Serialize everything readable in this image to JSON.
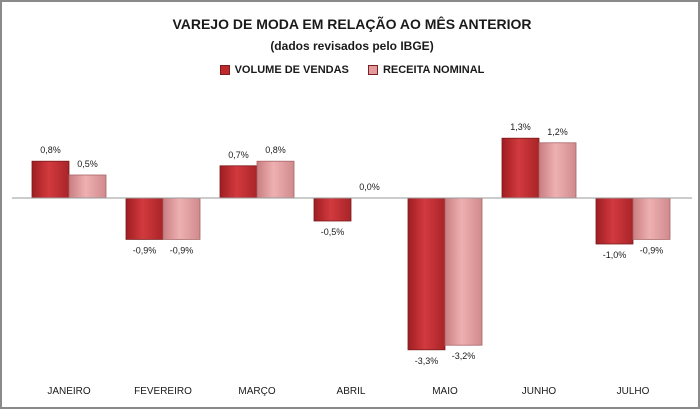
{
  "chart_data": {
    "type": "bar",
    "title": "VAREJO DE MODA EM RELAÇÃO AO MÊS ANTERIOR",
    "subtitle": "(dados revisados pelo IBGE)",
    "categories": [
      "JANEIRO",
      "FEVEREIRO",
      "MARÇO",
      "ABRIL",
      "MAIO",
      "JUNHO",
      "JULHO"
    ],
    "series": [
      {
        "name": "VOLUME DE VENDAS",
        "color": "#c0282c",
        "values": [
          0.8,
          -0.9,
          0.7,
          -0.5,
          -3.3,
          1.3,
          -1.0
        ],
        "labels": [
          "0,8%",
          "-0,9%",
          "0,7%",
          "-0,5%",
          "-3,3%",
          "1,3%",
          "-1,0%"
        ]
      },
      {
        "name": "RECEITA NOMINAL",
        "color": "#e39a9c",
        "values": [
          0.5,
          -0.9,
          0.8,
          0.0,
          -3.2,
          1.2,
          -0.9
        ],
        "labels": [
          "0,5%",
          "-0,9%",
          "0,8%",
          "0,0%",
          "-3,2%",
          "1,2%",
          "-0,9%"
        ]
      }
    ],
    "xlabel": "",
    "ylabel": "",
    "ylim": [
      -3.3,
      1.3
    ],
    "grid": false,
    "legend": "top-center"
  }
}
